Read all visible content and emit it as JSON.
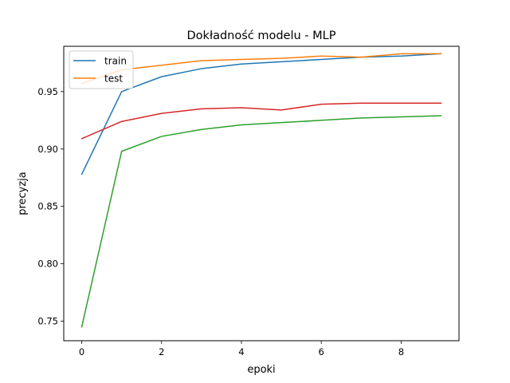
{
  "chart_data": {
    "type": "line",
    "title": "Dokładność modelu - MLP",
    "xlabel": "epoki",
    "ylabel": "precyzja",
    "xlim": [
      -0.45,
      9.45
    ],
    "ylim": [
      0.733,
      0.9895
    ],
    "xticks": [
      0,
      2,
      4,
      6,
      8
    ],
    "xtick_labels": [
      "0",
      "2",
      "4",
      "6",
      "8"
    ],
    "yticks": [
      0.75,
      0.8,
      0.85,
      0.9,
      0.95
    ],
    "ytick_labels": [
      "0.75",
      "0.80",
      "0.85",
      "0.90",
      "0.95"
    ],
    "grid": false,
    "legend_position": "top-left",
    "x": [
      0,
      1,
      2,
      3,
      4,
      5,
      6,
      7,
      8,
      9
    ],
    "series": [
      {
        "name": "train",
        "color": "#1f77b4",
        "in_legend": true,
        "values": [
          0.878,
          0.95,
          0.963,
          0.97,
          0.974,
          0.976,
          0.978,
          0.98,
          0.981,
          0.983
        ]
      },
      {
        "name": "test",
        "color": "#ff7f0e",
        "in_legend": true,
        "values": [
          0.957,
          0.969,
          0.973,
          0.977,
          0.978,
          0.979,
          0.981,
          0.98,
          0.983,
          0.983
        ]
      },
      {
        "name": "",
        "color": "#2ca02c",
        "in_legend": false,
        "values": [
          0.745,
          0.898,
          0.911,
          0.917,
          0.921,
          0.923,
          0.925,
          0.927,
          0.928,
          0.929
        ]
      },
      {
        "name": "",
        "color": "#d62728",
        "in_legend": false,
        "values": [
          0.909,
          0.924,
          0.931,
          0.935,
          0.936,
          0.934,
          0.939,
          0.94,
          0.94,
          0.94
        ]
      }
    ]
  }
}
